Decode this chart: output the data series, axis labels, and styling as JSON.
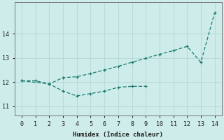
{
  "xlabel": "Humidex (Indice chaleur)",
  "bg_color": "#ceecea",
  "grid_color": "#b8dbd8",
  "line_color": "#1a7a6e",
  "upper_x": [
    0,
    1,
    2,
    3,
    4,
    5,
    6,
    7,
    8,
    9,
    10,
    11,
    12,
    13,
    14
  ],
  "upper_y": [
    12.05,
    12.05,
    11.92,
    12.18,
    12.22,
    12.35,
    12.5,
    12.65,
    12.82,
    12.98,
    13.15,
    13.3,
    13.48,
    12.82,
    14.88
  ],
  "lower_x": [
    0,
    2,
    3,
    4,
    5,
    6,
    7,
    8,
    9
  ],
  "lower_y": [
    12.05,
    11.92,
    11.62,
    11.42,
    11.52,
    11.62,
    11.78,
    11.82,
    11.82
  ],
  "yticks": [
    11,
    12,
    13,
    14
  ],
  "xticks": [
    0,
    1,
    2,
    3,
    4,
    5,
    6,
    7,
    8,
    9,
    10,
    11,
    12,
    13,
    14
  ],
  "ylim": [
    10.6,
    15.3
  ],
  "xlim": [
    -0.5,
    14.5
  ],
  "hline_color": "#d08080",
  "hline_y": 12.0
}
